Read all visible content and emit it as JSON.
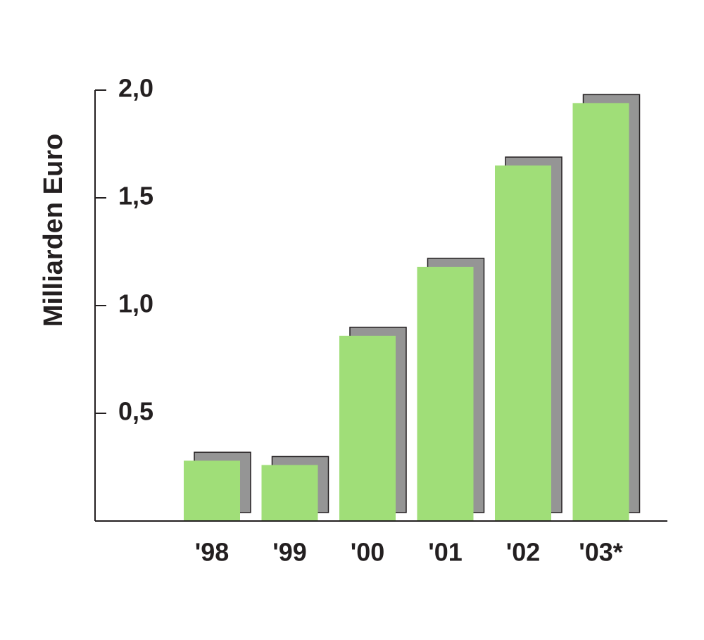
{
  "chart_data": {
    "type": "bar",
    "y_label": "Milliarden Euro",
    "categories": [
      "'98",
      "'99",
      "'00",
      "'01",
      "'02",
      "'03*"
    ],
    "values": [
      0.28,
      0.26,
      0.86,
      1.18,
      1.65,
      1.94
    ],
    "color": "#a0de78",
    "shadow_color": "#959595",
    "ylim": [
      0,
      2
    ],
    "yticks": [
      {
        "value": 0.5,
        "label": "0,5"
      },
      {
        "value": 1,
        "label": "1,0"
      },
      {
        "value": 1.5,
        "label": "1,5"
      },
      {
        "value": 2,
        "label": "2,0"
      }
    ]
  }
}
